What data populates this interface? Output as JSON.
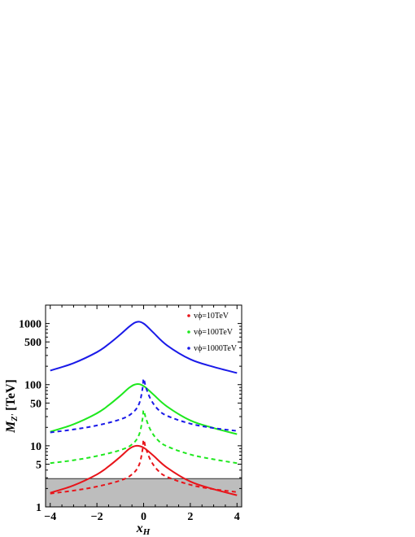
{
  "chart_data": {
    "type": "line",
    "xlabel": "x",
    "xlabel_sub": "H",
    "ylabel": "M",
    "ylabel_sub": "Z'",
    "ylabel_unit": "[TeV]",
    "xlim": [
      -4.2,
      4.2
    ],
    "ylim": [
      1,
      2000
    ],
    "yscale": "log",
    "x_ticks": [
      -4,
      -2,
      0,
      2,
      4
    ],
    "x_tick_labels": [
      "−4",
      "−2",
      "0",
      "2",
      "4"
    ],
    "y_ticks": [
      1,
      5,
      10,
      50,
      100,
      500,
      1000
    ],
    "y_tick_labels": [
      "1",
      "5",
      "10",
      "50",
      "100",
      "500",
      "1000"
    ],
    "shaded_region": {
      "y_min": 1,
      "y_max": 2.9,
      "color": "#bdbdbd"
    },
    "legend": [
      {
        "label": "vϕ=10TeV",
        "color": "#e8141a"
      },
      {
        "label": "vϕ=100TeV",
        "color": "#1ee81e"
      },
      {
        "label": "vϕ=1000TeV",
        "color": "#1a1ae8"
      }
    ],
    "series": [
      {
        "name": "vϕ=10TeV",
        "color": "#e8141a",
        "dash": "solid",
        "x": [
          -4,
          -3,
          -2,
          -1.5,
          -1,
          -0.6,
          -0.3,
          0,
          0.4,
          1,
          2,
          3,
          4
        ],
        "values": [
          1.7,
          2.25,
          3.4,
          4.6,
          6.6,
          9.0,
          10.0,
          9.3,
          7.0,
          4.4,
          2.6,
          1.95,
          1.55
        ]
      },
      {
        "name": "vϕ=100TeV",
        "color": "#1ee81e",
        "dash": "solid",
        "x": [
          -4,
          -3,
          -2,
          -1.5,
          -1,
          -0.6,
          -0.3,
          0,
          0.4,
          1,
          2,
          3,
          4
        ],
        "values": [
          17,
          22.5,
          34,
          46,
          66,
          90,
          102,
          95,
          70,
          44,
          26,
          19.5,
          15.5
        ]
      },
      {
        "name": "vϕ=1000TeV",
        "color": "#1a1ae8",
        "dash": "solid",
        "x": [
          -4,
          -3,
          -2,
          -1.5,
          -1,
          -0.6,
          -0.3,
          0,
          0.4,
          1,
          2,
          3,
          4
        ],
        "values": [
          170,
          225,
          340,
          460,
          660,
          900,
          1060,
          1000,
          720,
          440,
          260,
          195,
          155
        ]
      },
      {
        "name": "",
        "color": "#e8141a",
        "dash": "dashed",
        "x": [
          -4,
          -3,
          -2,
          -1,
          -0.5,
          -0.2,
          -0.05,
          0,
          0.1,
          0.3,
          0.6,
          1,
          2,
          3,
          4
        ],
        "values": [
          1.65,
          1.85,
          2.15,
          2.7,
          3.4,
          4.8,
          8.5,
          12.5,
          9.0,
          5.8,
          4.0,
          3.1,
          2.3,
          1.95,
          1.75
        ]
      },
      {
        "name": "",
        "color": "#1ee81e",
        "dash": "dashed",
        "x": [
          -4,
          -3,
          -2,
          -1,
          -0.5,
          -0.2,
          -0.05,
          0,
          0.1,
          0.3,
          0.6,
          1,
          2,
          3,
          4
        ],
        "values": [
          5.2,
          5.8,
          6.8,
          8.5,
          10.5,
          15,
          27,
          38,
          28,
          18,
          12.5,
          9.8,
          7.2,
          6.0,
          5.2
        ]
      },
      {
        "name": "",
        "color": "#1a1ae8",
        "dash": "dashed",
        "x": [
          -4,
          -3,
          -2,
          -1,
          -0.5,
          -0.2,
          -0.05,
          0,
          0.1,
          0.3,
          0.6,
          1,
          2,
          3,
          4
        ],
        "values": [
          16.5,
          18.5,
          21.5,
          27,
          34,
          48,
          85,
          125,
          90,
          58,
          40,
          31,
          23,
          19.5,
          17.5
        ]
      }
    ]
  }
}
